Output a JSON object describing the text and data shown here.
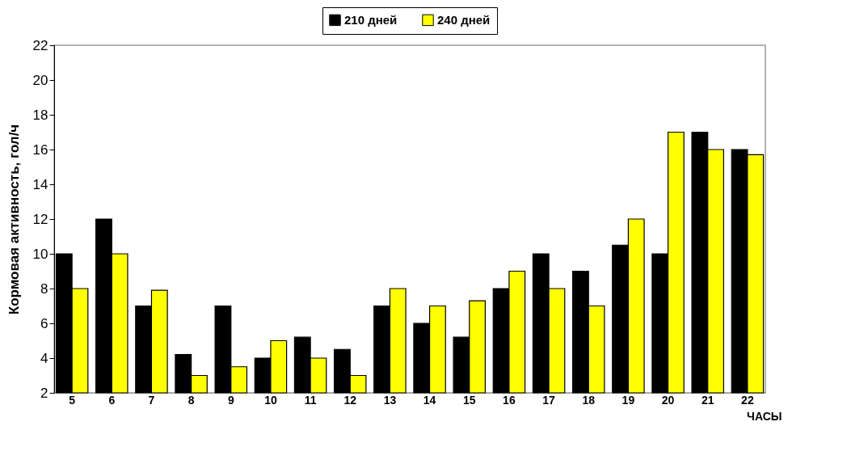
{
  "chart_data": {
    "type": "bar",
    "ylabel": "Кормовая активность, гол/ч",
    "xlabel": "ЧАСЫ",
    "categories": [
      "5",
      "6",
      "7",
      "8",
      "9",
      "10",
      "11",
      "12",
      "13",
      "14",
      "15",
      "16",
      "17",
      "18",
      "19",
      "20",
      "21",
      "22"
    ],
    "series": [
      {
        "name": "210 дней",
        "color": "#000000",
        "values": [
          10,
          12,
          7,
          4.2,
          7,
          4,
          5.2,
          4.5,
          7,
          6,
          5.2,
          8,
          10,
          9,
          10.5,
          10,
          17,
          16
        ]
      },
      {
        "name": "240 дней",
        "color": "#ffff00",
        "values": [
          8,
          10,
          7.9,
          3,
          3.5,
          5,
          4,
          3,
          8,
          7,
          7.3,
          9,
          8,
          7,
          12,
          17,
          16,
          15.7
        ]
      }
    ],
    "ylim": [
      2,
      22
    ],
    "yticks": [
      2,
      4,
      6,
      8,
      10,
      12,
      14,
      16,
      18,
      20,
      22
    ],
    "grid": false,
    "legend": "top"
  }
}
